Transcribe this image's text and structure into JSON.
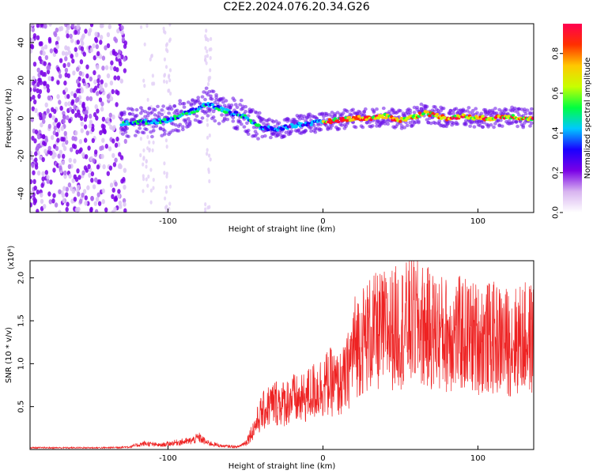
{
  "title": "C2E2.2024.076.20.34.G26",
  "chart_data": [
    {
      "type": "heatmap",
      "xlabel": "Height of straight line (km)",
      "ylabel": "Frequency (Hz)",
      "xlim": [
        -189,
        136
      ],
      "ylim": [
        -50,
        50
      ],
      "x_ticks": [
        -100,
        0,
        100
      ],
      "y_ticks": [
        -40,
        -20,
        0,
        20,
        40
      ],
      "colorbar": {
        "label": "Normalized spectral amplitude",
        "range": [
          0.0,
          0.95
        ],
        "ticks": [
          0.0,
          0.2,
          0.4,
          0.6,
          0.8
        ],
        "colors": [
          "#ffffff",
          "#d8b4f0",
          "#7a00e6",
          "#1a00ff",
          "#00c8ff",
          "#00ff40",
          "#c8ff00",
          "#ffc800",
          "#ff3000",
          "#ff0050"
        ]
      },
      "ridge": {
        "x": [
          -130,
          -120,
          -110,
          -100,
          -90,
          -80,
          -75,
          -70,
          -60,
          -50,
          -45,
          -40,
          -30,
          -20,
          -10,
          0,
          10,
          20,
          30,
          40,
          50,
          60,
          65,
          70,
          80,
          90,
          100,
          110,
          120,
          130,
          136
        ],
        "y": [
          -3,
          -2,
          -2,
          -1,
          2,
          5,
          8,
          6,
          3,
          1,
          -3,
          -5,
          -6,
          -4,
          -3,
          -2,
          -1,
          0,
          0,
          1,
          -1,
          1,
          3,
          2,
          0,
          1,
          0,
          0,
          1,
          0,
          0
        ]
      }
    },
    {
      "type": "line",
      "xlabel": "Height of straight line (km)",
      "ylabel": "SNR (10 * v/v)",
      "y_multiplier": "(x10⁴)",
      "xlim": [
        -189,
        136
      ],
      "ylim": [
        0,
        2.2
      ],
      "x_ticks": [
        -100,
        0,
        100
      ],
      "y_ticks": [
        0.5,
        1.0,
        1.5,
        2.0
      ],
      "series": [
        {
          "color": "#ee2222",
          "x": [
            -189,
            -160,
            -140,
            -125,
            -115,
            -105,
            -95,
            -85,
            -80,
            -75,
            -65,
            -55,
            -50,
            -45,
            -40,
            -35,
            -30,
            -25,
            -20,
            -15,
            -10,
            -5,
            0,
            5,
            10,
            15,
            20,
            30,
            40,
            50,
            60,
            70,
            80,
            90,
            100,
            110,
            120,
            130,
            136
          ],
          "y": [
            0.02,
            0.02,
            0.02,
            0.03,
            0.07,
            0.05,
            0.08,
            0.1,
            0.14,
            0.08,
            0.04,
            0.03,
            0.08,
            0.25,
            0.45,
            0.55,
            0.6,
            0.58,
            0.65,
            0.6,
            0.68,
            0.75,
            0.8,
            0.85,
            0.8,
            0.9,
            1.3,
            1.45,
            1.5,
            1.55,
            1.6,
            1.5,
            1.45,
            1.45,
            1.4,
            1.4,
            1.35,
            1.4,
            1.4
          ]
        }
      ]
    }
  ]
}
